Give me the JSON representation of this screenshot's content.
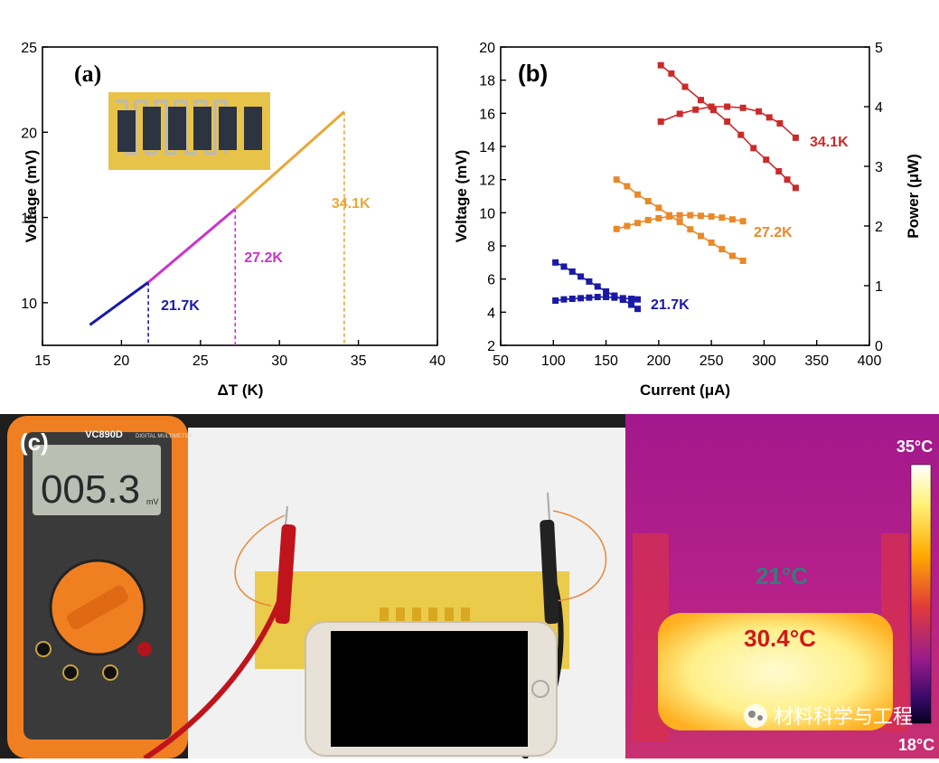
{
  "chart_data": [
    {
      "panel": "(a)",
      "type": "line",
      "xlabel": "ΔT (K)",
      "ylabel": "Voltage (mV)",
      "xlim": [
        15,
        40
      ],
      "ylim": [
        7.5,
        25
      ],
      "xticks": [
        "15",
        "20",
        "25",
        "30",
        "35",
        "40"
      ],
      "yticks": [
        "10",
        "15",
        "20",
        "25"
      ],
      "series": [
        {
          "name": "21.7K",
          "color": "#1a1aa6",
          "x": [
            18.0,
            21.7
          ],
          "y": [
            8.7,
            11.2
          ],
          "drop_x": 21.7
        },
        {
          "name": "27.2K",
          "color": "#cc33cc",
          "x": [
            21.7,
            27.2
          ],
          "y": [
            11.2,
            15.5
          ],
          "drop_x": 27.2
        },
        {
          "name": "34.1K",
          "color": "#e8a838",
          "x": [
            27.2,
            34.1
          ],
          "y": [
            15.5,
            21.2
          ],
          "drop_x": 34.1
        }
      ],
      "inset": "photo of serpentine thermoelectric device"
    },
    {
      "panel": "(b)",
      "type": "scatter",
      "xlabel": "Current (μA)",
      "ylabel": "Voltage (mV)",
      "y2label": "Power (μW)",
      "xlim": [
        50,
        400
      ],
      "ylim": [
        2,
        20
      ],
      "y2lim": [
        0,
        5
      ],
      "xticks": [
        "50",
        "100",
        "150",
        "200",
        "250",
        "300",
        "350",
        "400"
      ],
      "yticks": [
        "2",
        "4",
        "6",
        "8",
        "10",
        "12",
        "14",
        "16",
        "18",
        "20"
      ],
      "y2ticks": [
        "0",
        "1",
        "2",
        "3",
        "4",
        "5"
      ],
      "series": [
        {
          "name": "21.7K",
          "color": "#1a1aa6",
          "voltage": {
            "x": [
              102,
              110,
              118,
              126,
              134,
              142,
              150,
              158,
              166,
              174,
              180
            ],
            "y": [
              7.0,
              6.75,
              6.45,
              6.15,
              5.85,
              5.55,
              5.25,
              5.0,
              4.75,
              4.45,
              4.2
            ]
          },
          "power": {
            "x": [
              102,
              110,
              118,
              126,
              134,
              142,
              150,
              158,
              166,
              174,
              180
            ],
            "y": [
              0.75,
              0.77,
              0.78,
              0.79,
              0.8,
              0.81,
              0.81,
              0.8,
              0.79,
              0.78,
              0.77
            ]
          }
        },
        {
          "name": "27.2K",
          "color": "#e8892a",
          "voltage": {
            "x": [
              160,
              170,
              180,
              190,
              200,
              210,
              220,
              230,
              240,
              250,
              260,
              270,
              280
            ],
            "y": [
              12.0,
              11.6,
              11.1,
              10.7,
              10.3,
              9.85,
              9.45,
              9.0,
              8.6,
              8.2,
              7.8,
              7.4,
              7.1
            ]
          },
          "power": {
            "x": [
              160,
              170,
              180,
              190,
              200,
              210,
              220,
              230,
              240,
              250,
              260,
              270,
              280
            ],
            "y": [
              1.95,
              2.0,
              2.05,
              2.1,
              2.13,
              2.16,
              2.18,
              2.18,
              2.17,
              2.16,
              2.14,
              2.11,
              2.08
            ]
          }
        },
        {
          "name": "34.1K",
          "color": "#cc2a2a",
          "voltage": {
            "x": [
              202,
              212,
              225,
              240,
              252,
              265,
              278,
              290,
              302,
              314,
              322,
              330
            ],
            "y": [
              18.9,
              18.4,
              17.6,
              16.8,
              16.2,
              15.5,
              14.7,
              13.9,
              13.2,
              12.5,
              12.0,
              11.5
            ]
          },
          "power": {
            "x": [
              202,
              220,
              235,
              250,
              265,
              280,
              295,
              305,
              315,
              330
            ],
            "y": [
              3.75,
              3.88,
              3.95,
              4.0,
              4.0,
              3.98,
              3.92,
              3.82,
              3.72,
              3.48
            ]
          }
        }
      ]
    }
  ],
  "photo_panel": {
    "label": "(c)",
    "multimeter": {
      "brand": "VC890D",
      "subtitle": "DIGITAL MULTIMETER",
      "reading": "005.3",
      "unit": "mV"
    },
    "thermal": {
      "scale_max": "35°C",
      "scale_min": "18°C",
      "ambient": "21°C",
      "device": "30.4°C"
    },
    "watermark": "材料科学与工程"
  },
  "colors": {
    "blue": "#1a1aa6",
    "magenta": "#cc33cc",
    "orange": "#e8a838",
    "red": "#cc2a2a"
  }
}
